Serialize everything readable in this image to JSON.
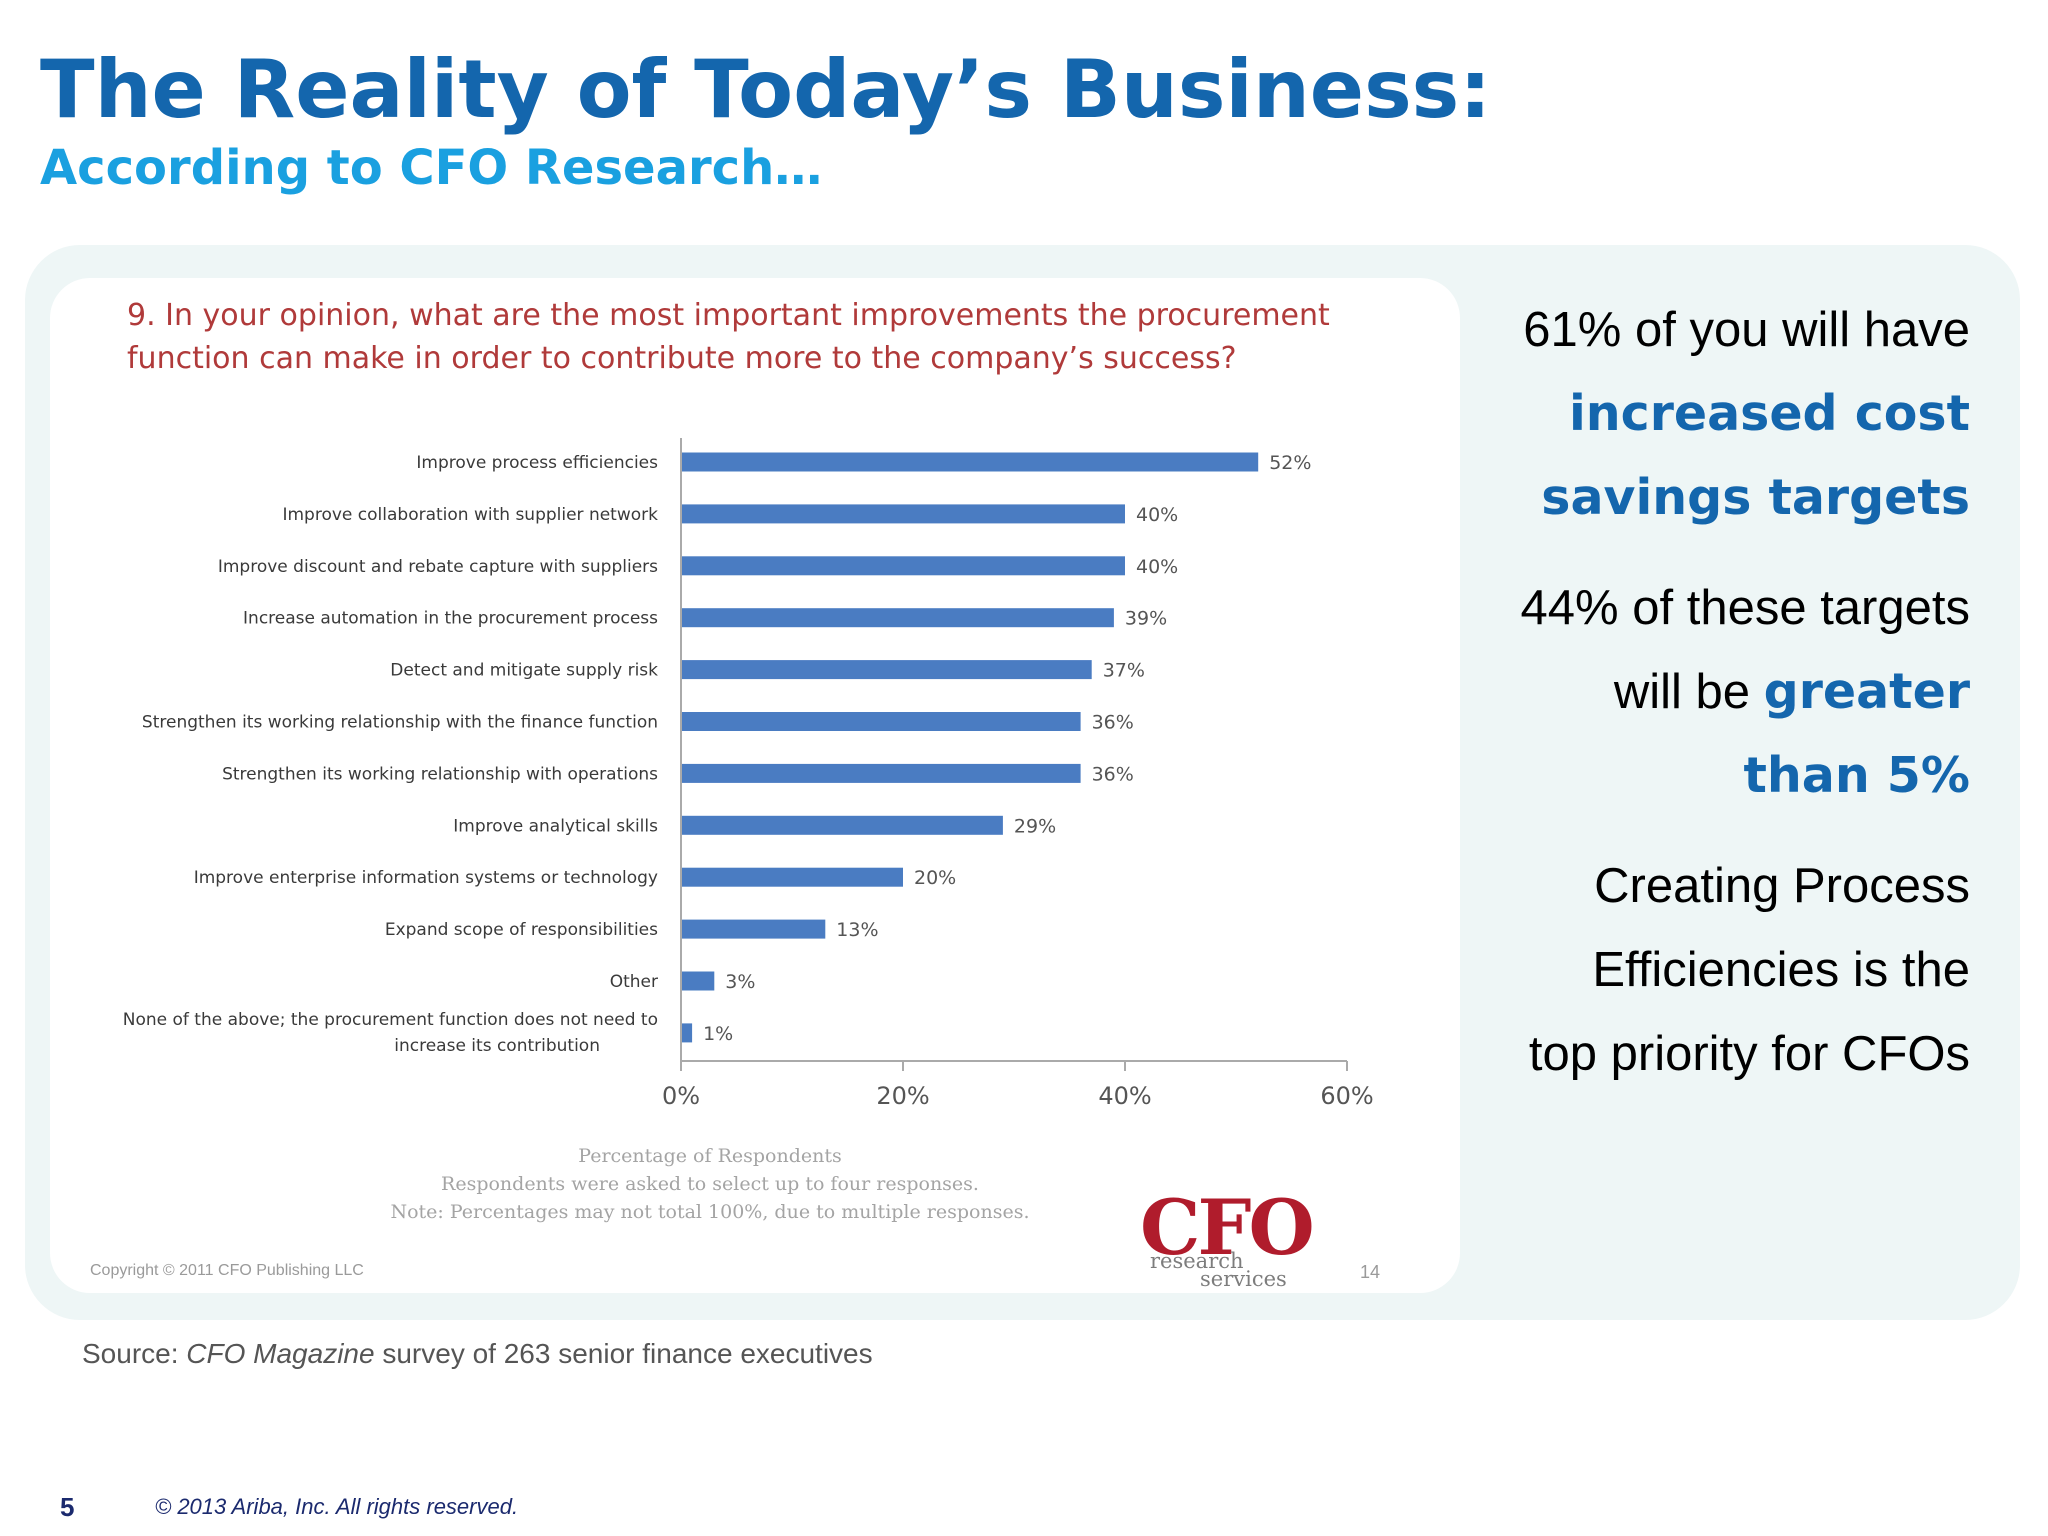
{
  "slide": {
    "title": "The Reality of Today’s Business:",
    "subtitle": "According to CFO Research…",
    "source_prefix": "Source: ",
    "source_italic": "CFO Magazine",
    "source_suffix": " survey of 263 senior finance executives",
    "page_number": "5",
    "footer_copyright": "© 2013 Ariba, Inc. All rights reserved."
  },
  "chart_card": {
    "question_line1": "9. In your opinion, what are the most important improvements the procurement",
    "question_line2": "function can make in order to contribute more to the company’s success?",
    "note_axis": "Percentage of Respondents",
    "note_select": "Respondents were asked to select up to four responses.",
    "note_total": "Note: Percentages may not total 100%, due to multiple responses.",
    "copyright": "Copyright © 2011 CFO Publishing LLC",
    "slide_ref": "14",
    "logo_main": "CFO",
    "logo_sub1": "research",
    "logo_sub2": "services"
  },
  "chart_data": {
    "type": "bar",
    "orientation": "horizontal",
    "categories": [
      "Improve process efficiencies",
      "Improve collaboration with supplier network",
      "Improve discount and rebate capture with suppliers",
      "Increase automation in the procurement process",
      "Detect and mitigate supply risk",
      "Strengthen its working relationship with the finance function",
      "Strengthen its working relationship with operations",
      "Improve analytical skills",
      "Improve enterprise information systems or technology",
      "Expand scope of responsibilities",
      "Other",
      "None of the above; the procurement function does not need to increase its contribution"
    ],
    "values": [
      52,
      40,
      40,
      39,
      37,
      36,
      36,
      29,
      20,
      13,
      3,
      1
    ],
    "data_labels": [
      "52%",
      "40%",
      "40%",
      "39%",
      "37%",
      "36%",
      "36%",
      "29%",
      "20%",
      "13%",
      "3%",
      "1%"
    ],
    "x_ticks": [
      "0%",
      "20%",
      "40%",
      "60%"
    ],
    "xlim": [
      0,
      60
    ],
    "xlabel": "Percentage of Respondents",
    "grid": false,
    "bar_color": "#4a7cc2"
  },
  "callouts": {
    "block1": {
      "line1": "61% of you will have",
      "line2": "increased cost",
      "line3": "savings targets"
    },
    "block2": {
      "line1": "44% of these targets",
      "line2_pre": "will be ",
      "line2_hl": "greater",
      "line3": "than 5%"
    },
    "block3": {
      "line1": "Creating Process",
      "line2": "Efficiencies is the",
      "line3": "top priority for CFOs"
    }
  }
}
